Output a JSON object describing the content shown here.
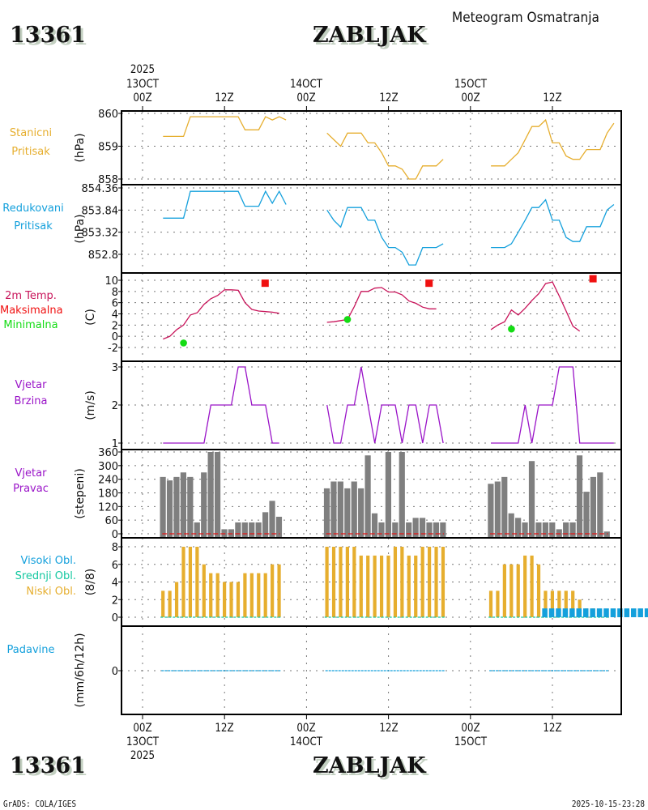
{
  "header": {
    "station_id": "13361",
    "station_name": "ZABLJAK",
    "product_title": "Meteogram Osmatranja"
  },
  "time_axis": {
    "top_year": "2025",
    "ticks": [
      {
        "hour": "00Z",
        "date": "13OCT"
      },
      {
        "hour": "12Z",
        "date": ""
      },
      {
        "hour": "00Z",
        "date": "14OCT"
      },
      {
        "hour": "12Z",
        "date": ""
      },
      {
        "hour": "00Z",
        "date": "15OCT"
      },
      {
        "hour": "12Z",
        "date": ""
      }
    ],
    "bottom_year": "2025"
  },
  "footer": {
    "left": "GrADS: COLA/IGES",
    "right": "2025-10-15-23:28"
  },
  "colors": {
    "station_pressure": "#e6ae2e",
    "reduced_pressure": "#14a0dc",
    "temperature": "#c8145a",
    "tmax": "#f01010",
    "tmin": "#14dc14",
    "wind_speed": "#9a14c8",
    "wind_dir_bar": "#7f7f7f",
    "wind_dir_line": "#e61414",
    "cloud_low": "#e6ae2e",
    "cloud_mid": "#14c8a0",
    "cloud_high": "#14a0dc",
    "precip": "#14a0dc"
  },
  "chart_data": [
    {
      "type": "line",
      "panel": "station_pressure",
      "labels": [
        "Stanicni",
        "Pritisak"
      ],
      "ylabel": "(hPa)",
      "yticks": [
        "860",
        "859",
        "858"
      ],
      "ylim": [
        858,
        860
      ],
      "x_hours_from_13OCT_00Z": "hourly 03Z-20Z each day",
      "series": [
        {
          "day": "13OCT",
          "start_hour": 3,
          "values": [
            859.3,
            859.3,
            859.3,
            859.3,
            859.9,
            859.9,
            859.9,
            859.9,
            859.9,
            859.9,
            859.9,
            859.9,
            859.5,
            859.5,
            859.5,
            859.9,
            859.8,
            859.9,
            859.8
          ]
        },
        {
          "day": "14OCT",
          "start_hour": 3,
          "values": [
            859.4,
            859.2,
            859.0,
            859.4,
            859.4,
            859.4,
            859.1,
            859.1,
            858.8,
            858.4,
            858.4,
            858.3,
            858.0,
            858.0,
            858.4,
            858.4,
            858.4,
            858.6
          ]
        },
        {
          "day": "15OCT",
          "start_hour": 3,
          "values": [
            858.4,
            858.4,
            858.4,
            858.6,
            858.8,
            859.2,
            859.6,
            859.6,
            859.8,
            859.1,
            859.1,
            858.7,
            858.6,
            858.6,
            858.9,
            858.9,
            858.9,
            859.4,
            859.7
          ]
        }
      ]
    },
    {
      "type": "line",
      "panel": "reduced_pressure",
      "labels": [
        "Redukovani",
        "Pritisak"
      ],
      "ylabel": "(hPa)",
      "yticks": [
        "854.36",
        "853.84",
        "853.32",
        "852.8"
      ],
      "ylim": [
        852.8,
        854.36
      ],
      "series": [
        {
          "day": "13OCT",
          "start_hour": 3,
          "values": [
            853.65,
            853.65,
            853.65,
            853.65,
            854.28,
            854.28,
            854.28,
            854.28,
            854.28,
            854.28,
            854.28,
            854.28,
            853.93,
            853.93,
            853.93,
            854.28,
            854.0,
            854.28,
            853.97
          ]
        },
        {
          "day": "14OCT",
          "start_hour": 3,
          "values": [
            853.84,
            853.6,
            853.44,
            853.9,
            853.9,
            853.9,
            853.6,
            853.6,
            853.2,
            852.96,
            852.96,
            852.85,
            852.55,
            852.55,
            852.96,
            852.96,
            852.96,
            853.05
          ]
        },
        {
          "day": "15OCT",
          "start_hour": 3,
          "values": [
            852.96,
            852.96,
            852.96,
            853.05,
            853.32,
            853.6,
            853.9,
            853.9,
            854.08,
            853.6,
            853.6,
            853.2,
            853.1,
            853.1,
            853.45,
            853.45,
            853.45,
            853.84,
            853.97
          ]
        }
      ]
    },
    {
      "type": "line",
      "panel": "temperature",
      "labels": [
        "2m Temp.",
        "Maksimalna",
        "Minimalna"
      ],
      "ylabel": "(C)",
      "yticks": [
        "10",
        "8",
        "6",
        "4",
        "2",
        "0",
        "-2"
      ],
      "ylim": [
        -2,
        11
      ],
      "series": [
        {
          "day": "13OCT",
          "start_hour": 3,
          "values": [
            -0.5,
            0.0,
            1.2,
            2.0,
            3.8,
            4.2,
            5.7,
            6.7,
            7.3,
            8.3,
            8.3,
            8.2,
            6.0,
            4.8,
            4.5,
            4.4,
            4.3,
            4.1
          ]
        },
        {
          "day": "14OCT",
          "start_hour": 3,
          "values": [
            2.5,
            2.6,
            2.8,
            3.0,
            5.3,
            8.0,
            8.0,
            8.6,
            8.7,
            7.9,
            7.9,
            7.4,
            6.3,
            5.9,
            5.2,
            4.9,
            4.9
          ]
        },
        {
          "day": "15OCT",
          "start_hour": 3,
          "values": [
            1.2,
            2.0,
            2.6,
            4.7,
            3.8,
            5.0,
            6.4,
            7.6,
            9.4,
            9.7,
            7.2,
            4.5,
            1.8,
            0.9
          ]
        }
      ],
      "tmax": [
        {
          "day": "13OCT",
          "hour": 18,
          "value": 9.4
        },
        {
          "day": "14OCT",
          "hour": 18,
          "value": 9.4
        },
        {
          "day": "15OCT",
          "hour": 18,
          "value": 10.2
        }
      ],
      "tmin": [
        {
          "day": "13OCT",
          "hour": 6,
          "value": -1.2
        },
        {
          "day": "14OCT",
          "hour": 6,
          "value": 3.0
        },
        {
          "day": "15OCT",
          "hour": 6,
          "value": 1.3
        }
      ]
    },
    {
      "type": "line",
      "panel": "wind_speed",
      "labels": [
        "Vjetar",
        "Brzina"
      ],
      "ylabel": "(m/s)",
      "yticks": [
        "3",
        "2",
        "1"
      ],
      "ylim": [
        1,
        3
      ],
      "series": [
        {
          "day": "13OCT",
          "start_hour": 3,
          "values": [
            1,
            1,
            1,
            1,
            1,
            1,
            1,
            2,
            2,
            2,
            2,
            3,
            3,
            2,
            2,
            2,
            1,
            1
          ]
        },
        {
          "day": "14OCT",
          "start_hour": 3,
          "values": [
            2,
            1,
            1,
            2,
            2,
            3,
            2,
            1,
            2,
            2,
            2,
            1,
            2,
            2,
            1,
            2,
            2,
            1
          ]
        },
        {
          "day": "15OCT",
          "start_hour": 3,
          "values": [
            1,
            1,
            1,
            1,
            1,
            2,
            1,
            2,
            2,
            2,
            3,
            3,
            3,
            1,
            1,
            1,
            1,
            1,
            1
          ]
        }
      ]
    },
    {
      "type": "bar",
      "panel": "wind_direction",
      "labels": [
        "Vjetar",
        "Pravac"
      ],
      "ylabel": "(stepeni)",
      "yticks": [
        "360",
        "300",
        "240",
        "180",
        "120",
        "60",
        "0"
      ],
      "ylim": [
        0,
        360
      ],
      "series": [
        {
          "day": "13OCT",
          "start_hour": 3,
          "values": [
            250,
            235,
            250,
            270,
            250,
            50,
            270,
            360,
            360,
            20,
            20,
            50,
            50,
            50,
            50,
            95,
            145,
            75
          ]
        },
        {
          "day": "14OCT",
          "start_hour": 3,
          "values": [
            200,
            230,
            230,
            200,
            230,
            200,
            345,
            90,
            50,
            360,
            50,
            360,
            50,
            70,
            70,
            50,
            50,
            50
          ]
        },
        {
          "day": "15OCT",
          "start_hour": 3,
          "values": [
            220,
            230,
            250,
            90,
            70,
            50,
            320,
            50,
            50,
            50,
            20,
            50,
            50,
            345,
            185,
            250,
            270,
            10
          ]
        }
      ]
    },
    {
      "type": "bar",
      "panel": "cloud_cover",
      "labels": [
        "Visoki Obl.",
        "Srednji Obl.",
        "Niski Obl."
      ],
      "ylabel": "(8/8)",
      "yticks": [
        "8",
        "6",
        "4",
        "2",
        "0"
      ],
      "ylim": [
        0,
        8
      ],
      "series": [
        {
          "name": "Niski Obl.",
          "day": "13OCT",
          "start_hour": 3,
          "values": [
            3,
            3,
            4,
            8,
            8,
            8,
            6,
            5,
            5,
            4,
            4,
            4,
            5,
            5,
            5,
            5,
            6,
            6
          ]
        },
        {
          "name": "Niski Obl.",
          "day": "14OCT",
          "start_hour": 3,
          "values": [
            8,
            8,
            8,
            8,
            8,
            7,
            7,
            7,
            7,
            7,
            8,
            8,
            7,
            7,
            8,
            8,
            8,
            8
          ]
        },
        {
          "name": "Niski Obl.",
          "day": "15OCT",
          "start_hour": 3,
          "values": [
            3,
            3,
            6,
            6,
            6,
            7,
            7,
            6,
            3,
            3,
            3,
            3,
            3,
            2,
            1,
            1,
            0,
            0
          ]
        },
        {
          "name": "Visoki Obl.",
          "day": "15OCT",
          "start_hour": 11,
          "values": [
            1,
            1,
            1,
            1,
            1,
            1,
            1,
            1,
            1,
            1,
            1,
            1,
            1,
            1,
            1,
            1
          ]
        },
        {
          "name": "Srednji Obl.",
          "all_days": "0"
        }
      ]
    },
    {
      "type": "bar",
      "panel": "precipitation",
      "labels": [
        "Padavine"
      ],
      "ylabel": "(mm/6h/12h)",
      "yticks": [
        "0"
      ],
      "ylim": [
        -1,
        1
      ],
      "series": [
        {
          "day": "13OCT",
          "start_hour": 3,
          "values": [
            0,
            0,
            0,
            0,
            0,
            0,
            0,
            0,
            0,
            0,
            0,
            0,
            0,
            0,
            0,
            0,
            0,
            0
          ]
        },
        {
          "day": "14OCT",
          "start_hour": 3,
          "values": [
            0,
            0,
            0,
            0,
            0,
            0,
            0,
            0,
            0,
            0,
            0,
            0,
            0,
            0,
            0,
            0,
            0,
            0
          ]
        },
        {
          "day": "15OCT",
          "start_hour": 3,
          "values": [
            0,
            0,
            0,
            0,
            0,
            0,
            0,
            0,
            0,
            0,
            0,
            0,
            0,
            0,
            0,
            0,
            0,
            0
          ]
        }
      ]
    }
  ]
}
